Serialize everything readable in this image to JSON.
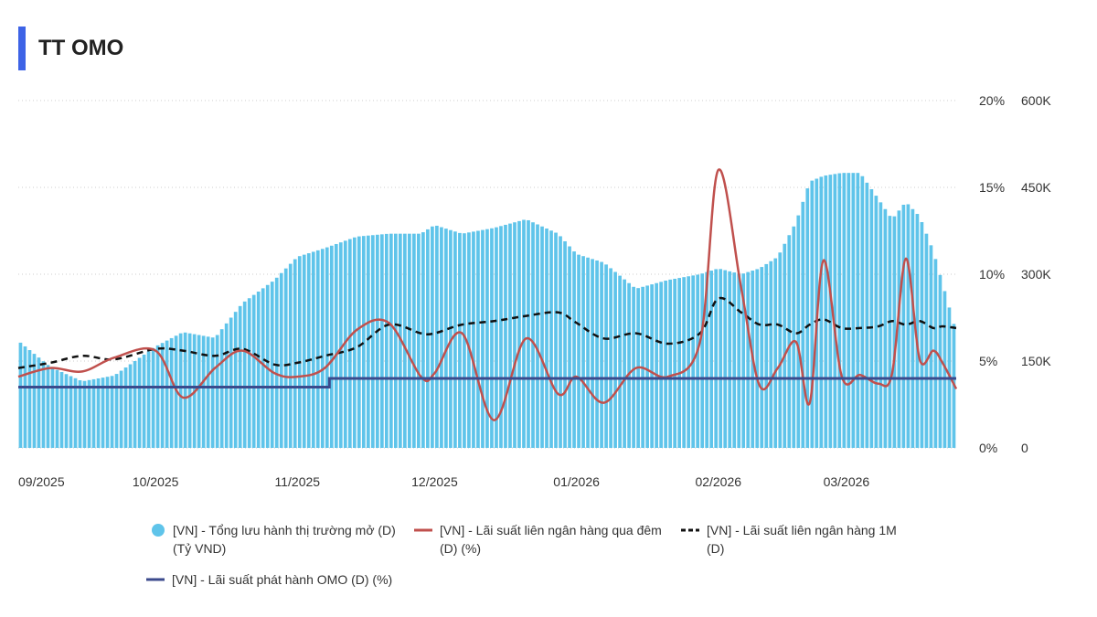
{
  "header": {
    "title": "TT OMO"
  },
  "colors": {
    "bars": "#5fc4ea",
    "overnight": "#c0504d",
    "one_month": "#111111",
    "omo": "#3b4a8c",
    "grid": "#cccccc",
    "title_bar": "#3d63e6"
  },
  "chart_data": {
    "type": "bar+line",
    "x_start": "2025-09-01",
    "x_end": "2026-03-25",
    "x_tick_labels": [
      "09/2025",
      "10/2025",
      "11/2025",
      "12/2025",
      "01/2026",
      "02/2026",
      "03/2026"
    ],
    "y_left_tick_labels": [
      "20%",
      "15%",
      "10%",
      "5%",
      "0%"
    ],
    "y_right_tick_labels": [
      "600K",
      "450K",
      "300K",
      "150K",
      "0"
    ],
    "y_left_range": [
      0,
      20
    ],
    "y_right_range": [
      0,
      600000
    ],
    "grid": "horizontal dotted",
    "legend_position": "bottom",
    "series": [
      {
        "name": "[VN] - Tổng lưu hành thị trường mở (D) (Tỷ VND)",
        "kind": "bar",
        "axis": "right",
        "points": [
          [
            "2025-09-01",
            185000
          ],
          [
            "2025-09-08",
            140000
          ],
          [
            "2025-09-15",
            115000
          ],
          [
            "2025-09-22",
            125000
          ],
          [
            "2025-10-01",
            175000
          ],
          [
            "2025-10-07",
            200000
          ],
          [
            "2025-10-14",
            190000
          ],
          [
            "2025-10-20",
            250000
          ],
          [
            "2025-10-27",
            290000
          ],
          [
            "2025-11-01",
            330000
          ],
          [
            "2025-11-07",
            345000
          ],
          [
            "2025-11-14",
            365000
          ],
          [
            "2025-11-21",
            370000
          ],
          [
            "2025-11-28",
            370000
          ],
          [
            "2025-12-01",
            385000
          ],
          [
            "2025-12-07",
            370000
          ],
          [
            "2025-12-14",
            380000
          ],
          [
            "2025-12-21",
            395000
          ],
          [
            "2025-12-28",
            370000
          ],
          [
            "2026-01-01",
            335000
          ],
          [
            "2026-01-07",
            320000
          ],
          [
            "2026-01-14",
            275000
          ],
          [
            "2026-01-21",
            290000
          ],
          [
            "2026-01-28",
            300000
          ],
          [
            "2026-02-01",
            310000
          ],
          [
            "2026-02-06",
            300000
          ],
          [
            "2026-02-10",
            310000
          ],
          [
            "2026-02-14",
            330000
          ],
          [
            "2026-02-18",
            390000
          ],
          [
            "2026-02-21",
            460000
          ],
          [
            "2026-02-24",
            470000
          ],
          [
            "2026-02-28",
            475000
          ],
          [
            "2026-03-04",
            475000
          ],
          [
            "2026-03-08",
            430000
          ],
          [
            "2026-03-11",
            395000
          ],
          [
            "2026-03-14",
            425000
          ],
          [
            "2026-03-17",
            400000
          ],
          [
            "2026-03-20",
            340000
          ],
          [
            "2026-03-22",
            285000
          ],
          [
            "2026-03-25",
            200000
          ]
        ]
      },
      {
        "name": "[VN] - Lãi suất liên ngân hàng qua đêm (D) (%)",
        "kind": "line",
        "axis": "left",
        "points": [
          [
            "2025-09-01",
            4.1
          ],
          [
            "2025-09-08",
            4.6
          ],
          [
            "2025-09-15",
            4.4
          ],
          [
            "2025-09-22",
            5.2
          ],
          [
            "2025-10-01",
            5.6
          ],
          [
            "2025-10-07",
            2.9
          ],
          [
            "2025-10-14",
            4.6
          ],
          [
            "2025-10-20",
            5.6
          ],
          [
            "2025-10-27",
            4.3
          ],
          [
            "2025-11-01",
            4.1
          ],
          [
            "2025-11-07",
            4.6
          ],
          [
            "2025-11-14",
            6.8
          ],
          [
            "2025-11-21",
            7.2
          ],
          [
            "2025-11-28",
            4.1
          ],
          [
            "2025-12-01",
            4.3
          ],
          [
            "2025-12-07",
            6.6
          ],
          [
            "2025-12-14",
            1.6
          ],
          [
            "2025-12-21",
            6.3
          ],
          [
            "2025-12-28",
            3.1
          ],
          [
            "2026-01-01",
            4.1
          ],
          [
            "2026-01-07",
            2.6
          ],
          [
            "2026-01-14",
            4.6
          ],
          [
            "2026-01-21",
            4.1
          ],
          [
            "2026-01-28",
            6.1
          ],
          [
            "2026-02-01",
            16.0
          ],
          [
            "2026-02-06",
            9.2
          ],
          [
            "2026-02-10",
            3.6
          ],
          [
            "2026-02-14",
            4.6
          ],
          [
            "2026-02-18",
            6.1
          ],
          [
            "2026-02-21",
            2.6
          ],
          [
            "2026-02-24",
            10.8
          ],
          [
            "2026-02-28",
            4.1
          ],
          [
            "2026-03-04",
            4.2
          ],
          [
            "2026-03-08",
            3.7
          ],
          [
            "2026-03-11",
            4.3
          ],
          [
            "2026-03-14",
            10.9
          ],
          [
            "2026-03-17",
            5.1
          ],
          [
            "2026-03-20",
            5.6
          ],
          [
            "2026-03-22",
            4.9
          ],
          [
            "2026-03-25",
            3.4
          ]
        ]
      },
      {
        "name": "[VN] - Lãi suất liên ngân hàng 1M (D)",
        "kind": "line-dashed",
        "axis": "left",
        "points": [
          [
            "2025-09-01",
            4.6
          ],
          [
            "2025-09-08",
            4.9
          ],
          [
            "2025-09-15",
            5.3
          ],
          [
            "2025-09-22",
            5.1
          ],
          [
            "2025-10-01",
            5.7
          ],
          [
            "2025-10-07",
            5.6
          ],
          [
            "2025-10-14",
            5.3
          ],
          [
            "2025-10-20",
            5.7
          ],
          [
            "2025-10-27",
            4.8
          ],
          [
            "2025-11-01",
            4.9
          ],
          [
            "2025-11-07",
            5.3
          ],
          [
            "2025-11-14",
            5.8
          ],
          [
            "2025-11-21",
            7.1
          ],
          [
            "2025-11-28",
            6.6
          ],
          [
            "2025-12-01",
            6.6
          ],
          [
            "2025-12-07",
            7.1
          ],
          [
            "2025-12-14",
            7.3
          ],
          [
            "2025-12-21",
            7.6
          ],
          [
            "2025-12-28",
            7.8
          ],
          [
            "2026-01-01",
            7.2
          ],
          [
            "2026-01-07",
            6.3
          ],
          [
            "2026-01-14",
            6.6
          ],
          [
            "2026-01-21",
            6.0
          ],
          [
            "2026-01-28",
            6.6
          ],
          [
            "2026-02-01",
            8.6
          ],
          [
            "2026-02-06",
            7.8
          ],
          [
            "2026-02-10",
            7.1
          ],
          [
            "2026-02-14",
            7.1
          ],
          [
            "2026-02-18",
            6.6
          ],
          [
            "2026-02-21",
            7.1
          ],
          [
            "2026-02-24",
            7.4
          ],
          [
            "2026-02-28",
            6.9
          ],
          [
            "2026-03-04",
            6.9
          ],
          [
            "2026-03-08",
            7.0
          ],
          [
            "2026-03-11",
            7.3
          ],
          [
            "2026-03-14",
            7.1
          ],
          [
            "2026-03-17",
            7.3
          ],
          [
            "2026-03-20",
            6.9
          ],
          [
            "2026-03-22",
            7.0
          ],
          [
            "2026-03-25",
            6.9
          ]
        ]
      },
      {
        "name": "[VN] - Lãi suất phát hành OMO (D) (%)",
        "kind": "line",
        "axis": "left",
        "points": [
          [
            "2025-09-01",
            3.5
          ],
          [
            "2025-11-07",
            3.5
          ],
          [
            "2025-11-08",
            4.0
          ],
          [
            "2026-03-25",
            4.0
          ]
        ]
      }
    ]
  }
}
